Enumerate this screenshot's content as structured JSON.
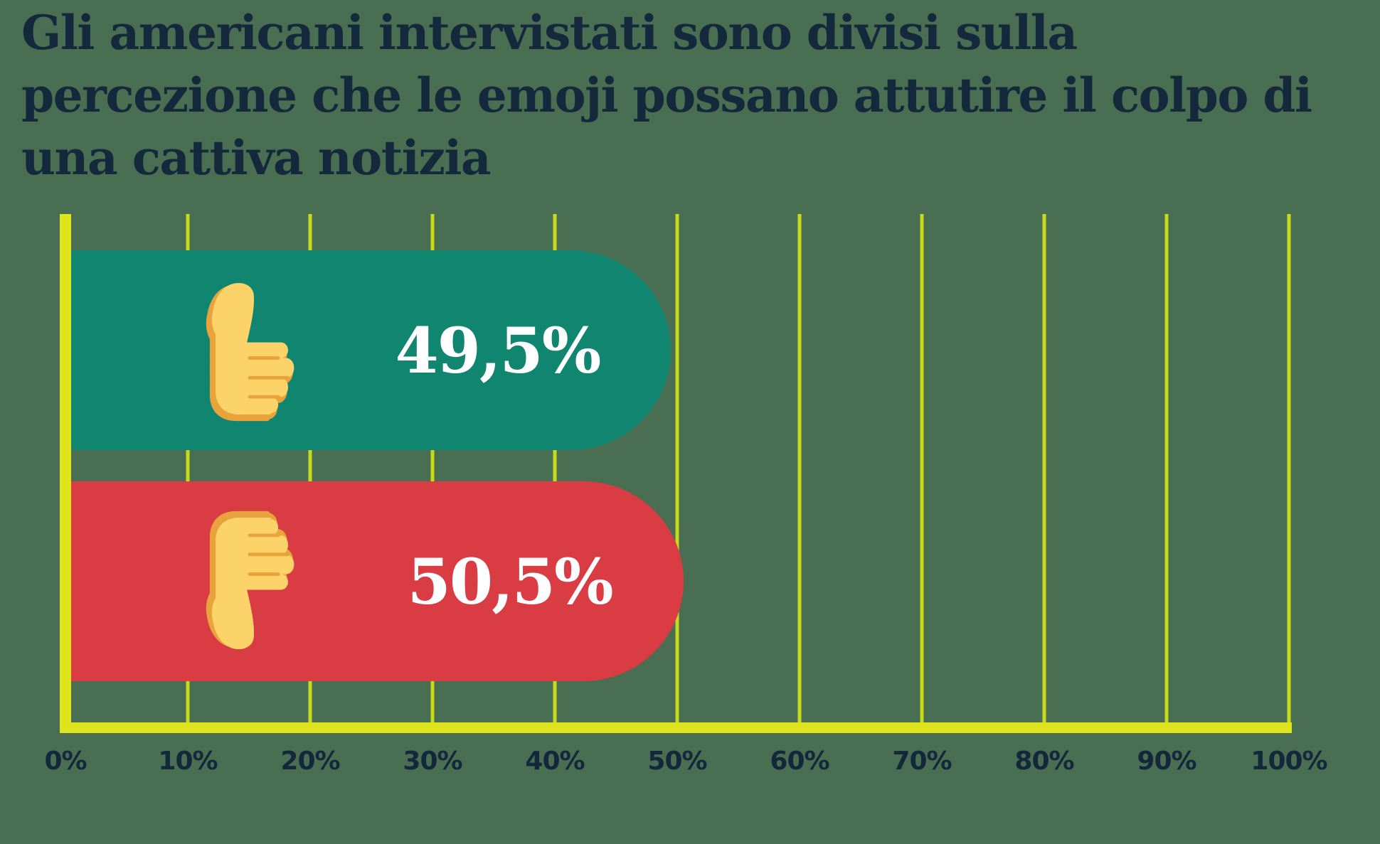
{
  "canvas": {
    "background": "#4A6E52"
  },
  "title": {
    "color": "#142A3C",
    "lines": [
      "Gli americani intervistati sono divisi sulla",
      "percezione che le emoji possano attutire il colpo di",
      "una cattiva notizia"
    ]
  },
  "chart_data": {
    "type": "bar",
    "orientation": "horizontal",
    "title": "Gli americani intervistati sono divisi sulla percezione che le emoji possano attutire il colpo di una cattiva notizia",
    "categories": [
      "thumbs-up-emoji",
      "thumbs-down-emoji"
    ],
    "values": [
      49.5,
      50.5
    ],
    "value_labels": [
      "49,5%",
      "50,5%"
    ],
    "bar_colors": [
      "#108570",
      "#D93C43"
    ],
    "xlim": [
      0,
      100
    ],
    "xticks": [
      0,
      10,
      20,
      30,
      40,
      50,
      60,
      70,
      80,
      90,
      100
    ],
    "xtick_labels": [
      "0%",
      "10%",
      "20%",
      "30%",
      "40%",
      "50%",
      "60%",
      "70%",
      "80%",
      "90%",
      "100%"
    ],
    "grid": true,
    "grid_color": "#C8D81A",
    "axis_color": "#DEE51E",
    "tick_label_color": "#13293B",
    "value_label_color": "#FFFFFF"
  },
  "emoji": {
    "fill": "#FBD369",
    "outline": "#E8A33D"
  }
}
